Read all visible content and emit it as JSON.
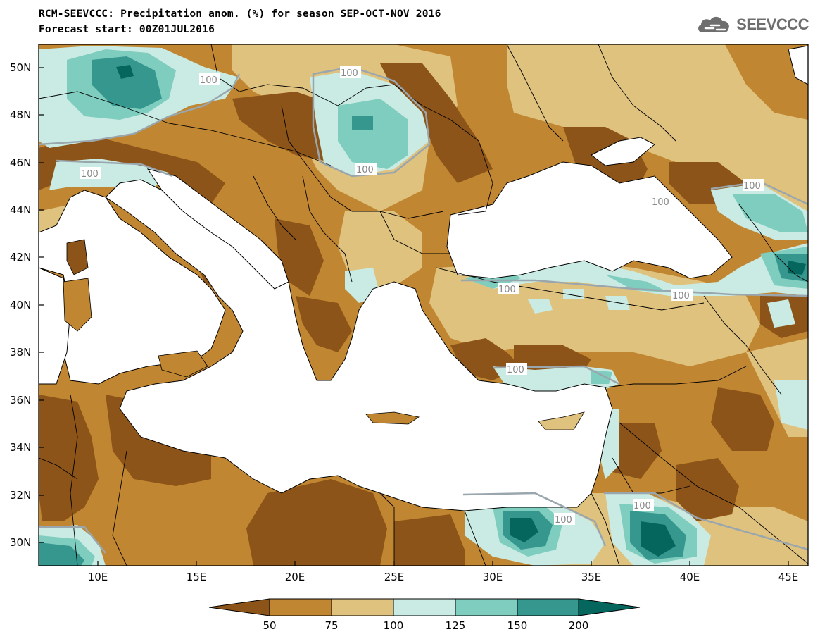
{
  "header": {
    "title_line1": "RCM-SEEVCCC: Precipitation anom. (%) for season SEP-OCT-NOV 2016",
    "title_line2": "Forecast start: 00Z01JUL2016"
  },
  "logo": {
    "text": "SEEVCCC",
    "icon": "cloud-icon"
  },
  "map": {
    "lon_ticks": [
      "10E",
      "15E",
      "20E",
      "25E",
      "30E",
      "35E",
      "40E",
      "45E"
    ],
    "lat_ticks": [
      "50N",
      "48N",
      "46N",
      "44N",
      "42N",
      "40N",
      "38N",
      "36N",
      "34N",
      "32N",
      "30N"
    ],
    "contour_labels": [
      "100",
      "100",
      "100",
      "100",
      "100",
      "100",
      "100",
      "100",
      "100",
      "100",
      "100"
    ],
    "colors": {
      "lt50": "#8c5418",
      "50_75": "#c08631",
      "75_100": "#e0c27f",
      "100_125": "#c9ebe3",
      "125_150": "#7fcdbf",
      "150_200": "#36978f",
      "gt200": "#05665e",
      "sea": "#ffffff"
    }
  },
  "colorbar": {
    "labels": [
      "50",
      "75",
      "100",
      "125",
      "150",
      "200"
    ],
    "colors": [
      "#8c5418",
      "#c08631",
      "#e0c27f",
      "#c9ebe3",
      "#7fcdbf",
      "#36978f",
      "#05665e"
    ]
  }
}
